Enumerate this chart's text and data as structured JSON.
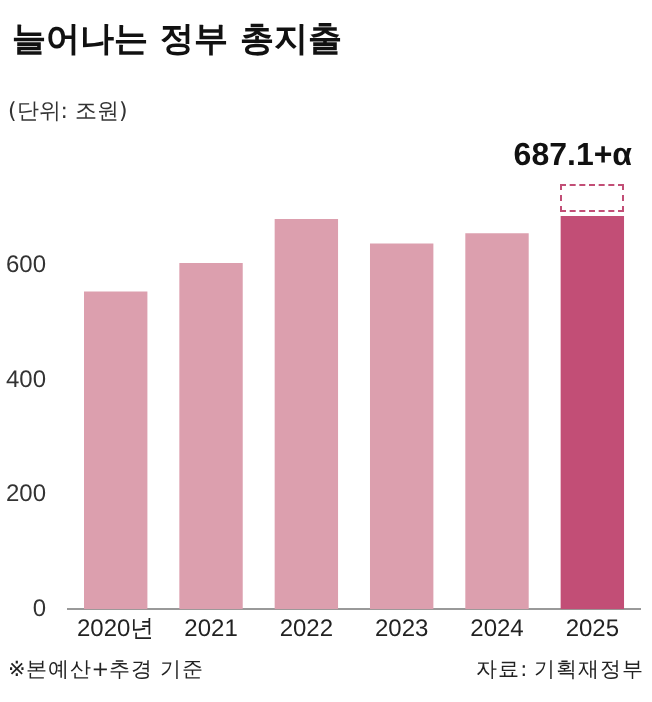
{
  "chart_data": {
    "type": "bar",
    "title": "늘어나는 정부 총지출",
    "ylabel": "(단위: 조원)",
    "categories": [
      "2020년",
      "2021",
      "2022",
      "2023",
      "2024",
      "2025"
    ],
    "values": [
      555,
      605,
      682,
      639,
      657,
      687.1
    ],
    "colors": [
      "#dc9fae",
      "#dc9fae",
      "#dc9fae",
      "#dc9fae",
      "#dc9fae",
      "#c24e76"
    ],
    "value_labels": [
      null,
      null,
      null,
      null,
      null,
      "687.1+α"
    ],
    "ylim": [
      0,
      750
    ],
    "yticks": [
      0,
      200,
      400,
      600
    ],
    "grid": false,
    "legend": false,
    "annotations": [
      "※본예산+추경 기준",
      "자료: 기획재정부"
    ]
  }
}
